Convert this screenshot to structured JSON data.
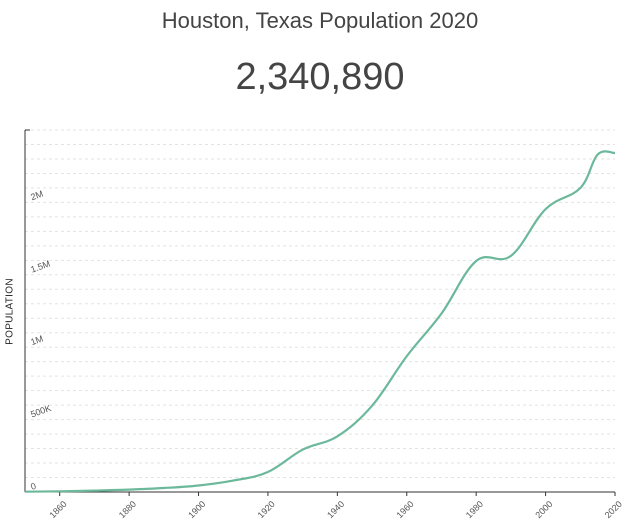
{
  "title": "Houston, Texas Population 2020",
  "headline_value": "2,340,890",
  "chart_data": {
    "type": "line",
    "title": "Houston, Texas Population 2020",
    "ylabel": "POPULATION",
    "xlabel": "",
    "xlim": [
      1850,
      2020
    ],
    "ylim": [
      0,
      2500000
    ],
    "x_ticks": [
      {
        "value": 1860,
        "label": "1860"
      },
      {
        "value": 1880,
        "label": "1880"
      },
      {
        "value": 1900,
        "label": "1900"
      },
      {
        "value": 1920,
        "label": "1920"
      },
      {
        "value": 1940,
        "label": "1940"
      },
      {
        "value": 1960,
        "label": "1960"
      },
      {
        "value": 1980,
        "label": "1980"
      },
      {
        "value": 2000,
        "label": "2000"
      },
      {
        "value": 2020,
        "label": "2020"
      }
    ],
    "y_ticks": [
      {
        "value": 0,
        "label": "0"
      },
      {
        "value": 500000,
        "label": "500K"
      },
      {
        "value": 1000000,
        "label": "1M"
      },
      {
        "value": 1500000,
        "label": "1.5M"
      },
      {
        "value": 2000000,
        "label": "2M"
      }
    ],
    "grid": true,
    "series": [
      {
        "name": "Population",
        "color": "#6bb89b",
        "x": [
          1850,
          1860,
          1870,
          1880,
          1890,
          1900,
          1910,
          1920,
          1930,
          1940,
          1950,
          1960,
          1970,
          1980,
          1990,
          2000,
          2010,
          2015,
          2020
        ],
        "values": [
          2400,
          4800,
          9400,
          16500,
          27600,
          44600,
          78800,
          138300,
          292400,
          384500,
          596200,
          938200,
          1232800,
          1595100,
          1630600,
          1953600,
          2099500,
          2330000,
          2340890
        ]
      }
    ]
  }
}
